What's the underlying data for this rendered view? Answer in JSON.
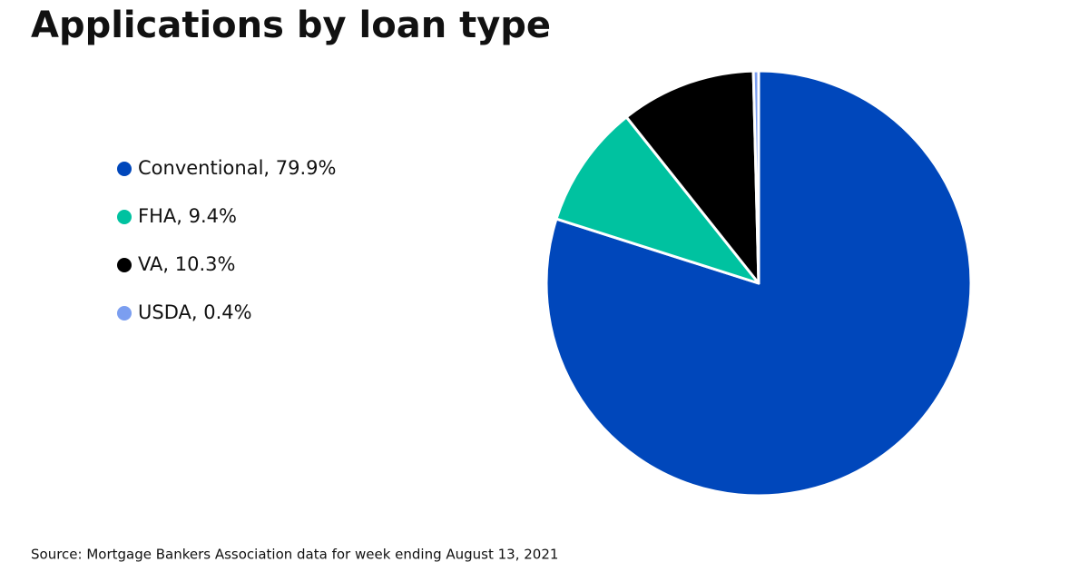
{
  "chart_data": {
    "type": "pie",
    "title": "Applications by loan type",
    "categories": [
      "Conventional, 79.9%",
      "FHA, 9.4%",
      "VA, 10.3%",
      "USDA, 0.4%"
    ],
    "values": [
      79.9,
      9.4,
      10.3,
      0.4
    ],
    "colors": [
      "#0047bb",
      "#00c2a0",
      "#000000",
      "#7b9ef0"
    ],
    "source": "Source: Mortgage Bankers Association data for week ending August 13, 2021"
  }
}
